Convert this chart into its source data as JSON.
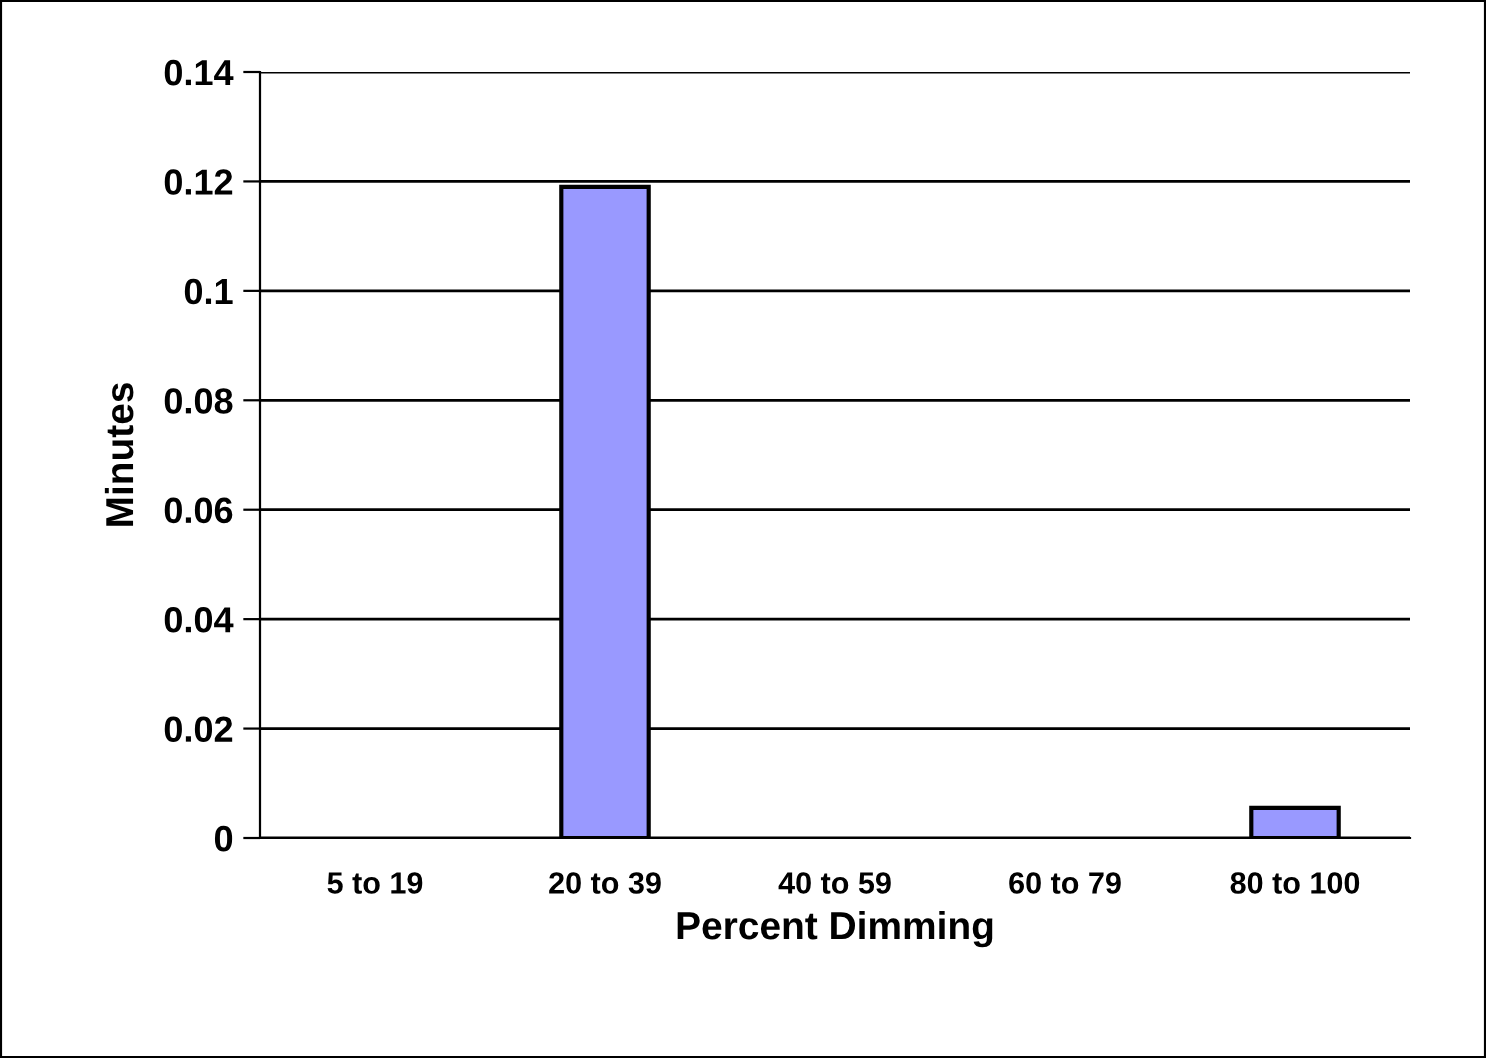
{
  "chart_data": {
    "type": "bar",
    "xlabel": "Percent Dimming",
    "ylabel": "Minutes",
    "categories": [
      "5 to 19",
      "20 to 39",
      "40 to 59",
      "60 to 79",
      "80 to 100"
    ],
    "values": [
      0,
      0.119,
      0,
      0,
      0.0055
    ],
    "color": "#9999ff",
    "ylim": [
      0,
      0.14
    ],
    "yticks": [
      0,
      0.02,
      0.04,
      0.06,
      0.08,
      0.1,
      0.12,
      0.14
    ],
    "grid": "y",
    "legend": false
  }
}
